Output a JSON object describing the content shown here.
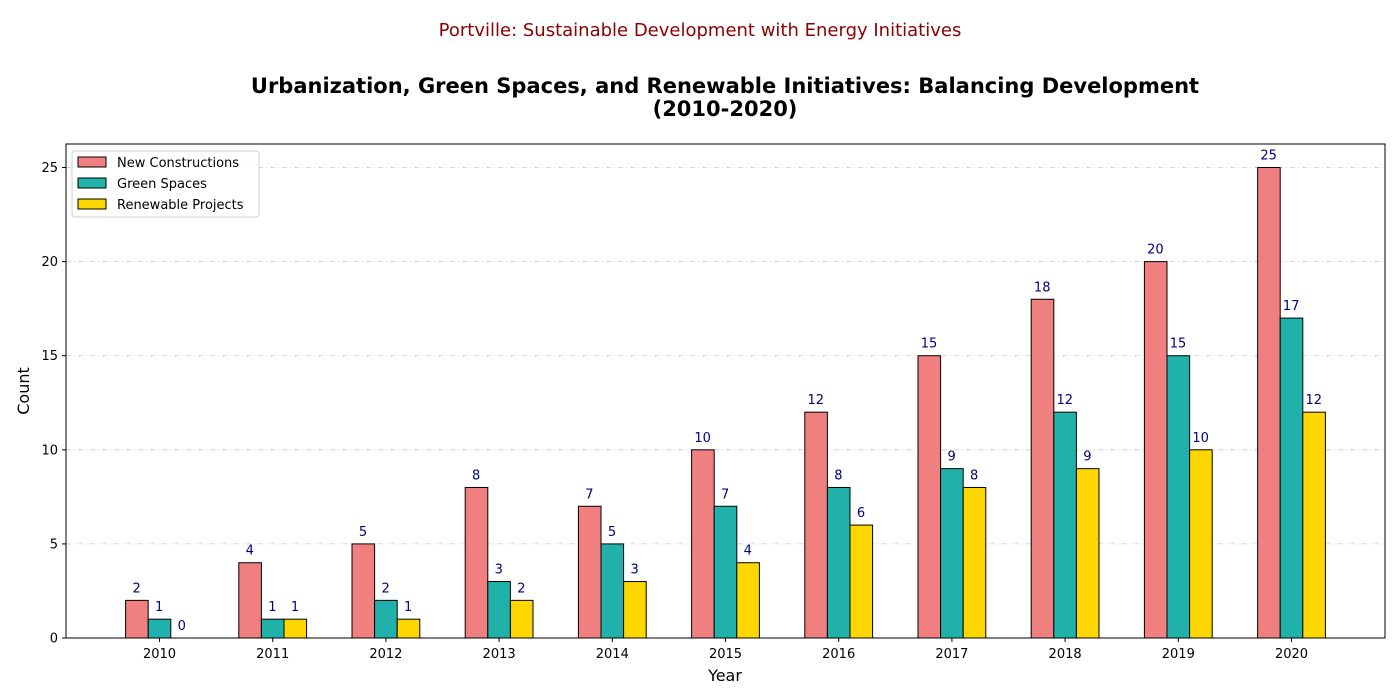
{
  "suptitle": "Portville: Sustainable Development with Energy Initiatives",
  "title_line1": "Urbanization, Green Spaces, and Renewable Initiatives: Balancing Development",
  "title_line2": "(2010-2020)",
  "colors": {
    "suptitle": "#8b0000",
    "bar_label": "#000080",
    "edge": "#000000"
  },
  "chart_data": {
    "type": "bar",
    "categories": [
      "2010",
      "2011",
      "2012",
      "2013",
      "2014",
      "2015",
      "2016",
      "2017",
      "2018",
      "2019",
      "2020"
    ],
    "series": [
      {
        "name": "New Constructions",
        "color": "#f08080",
        "values": [
          2,
          4,
          5,
          8,
          7,
          10,
          12,
          15,
          18,
          20,
          25
        ]
      },
      {
        "name": "Green Spaces",
        "color": "#20b2aa",
        "values": [
          1,
          1,
          2,
          3,
          5,
          7,
          8,
          9,
          12,
          15,
          17
        ]
      },
      {
        "name": "Renewable Projects",
        "color": "#ffd700",
        "values": [
          0,
          1,
          1,
          2,
          3,
          4,
          6,
          8,
          9,
          10,
          12
        ]
      }
    ],
    "xlabel": "Year",
    "ylabel": "Count",
    "ylim": [
      0,
      26.25
    ],
    "yticks": [
      0,
      5,
      10,
      15,
      20,
      25
    ],
    "grid": "y-axis dash-dot",
    "legend_position": "top-left"
  }
}
